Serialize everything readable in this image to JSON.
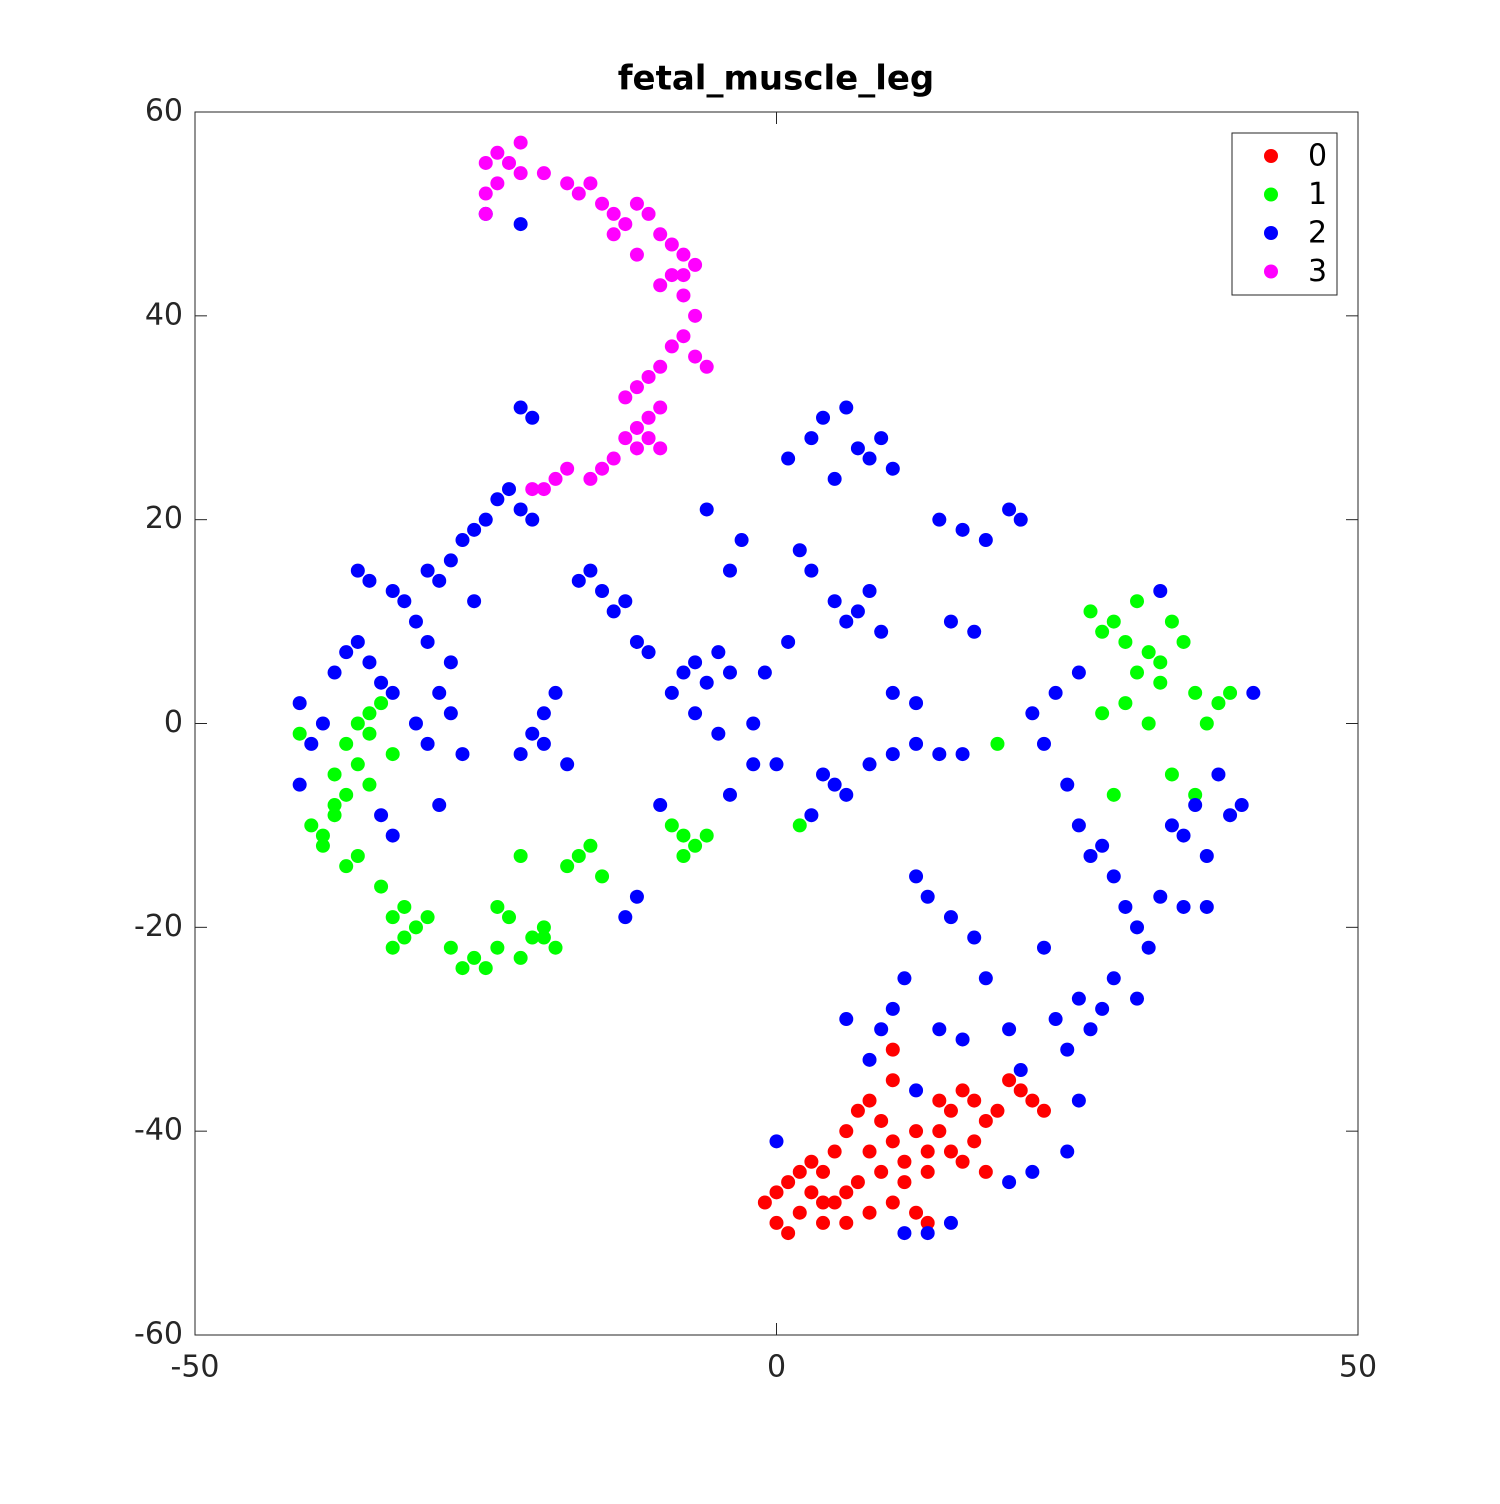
{
  "chart_data": {
    "type": "scatter",
    "title": "fetal_muscle_leg",
    "xlim": [
      -50,
      50
    ],
    "xticks": [
      -50,
      0,
      50
    ],
    "ylim": [
      -60,
      60
    ],
    "yticks": [
      -60,
      -40,
      -20,
      0,
      20,
      40,
      60
    ],
    "grid": false,
    "legend": "upper right",
    "series": [
      {
        "name": "0",
        "color": "#ff0000",
        "x": [
          -1,
          0,
          1,
          2,
          3,
          4,
          5,
          6,
          7,
          8,
          9,
          10,
          11,
          12,
          13,
          14,
          15,
          16,
          17,
          18,
          19,
          20,
          21,
          22,
          23,
          5,
          7,
          9,
          11,
          4,
          6,
          2,
          1,
          3,
          8,
          10,
          13,
          15,
          16,
          17,
          12,
          14,
          10,
          10,
          13,
          18,
          0,
          6,
          8,
          4
        ],
        "values": [
          -47,
          -49,
          -45,
          -48,
          -46,
          -44,
          -42,
          -40,
          -38,
          -37,
          -39,
          -41,
          -43,
          -48,
          -49,
          -40,
          -38,
          -36,
          -37,
          -39,
          -38,
          -35,
          -36,
          -37,
          -38,
          -47,
          -45,
          -44,
          -45,
          -49,
          -49,
          -44,
          -50,
          -43,
          -42,
          -47,
          -44,
          -42,
          -43,
          -41,
          -40,
          -37,
          -35,
          -32,
          -42,
          -44,
          -46,
          -46,
          -48,
          -47
        ]
      },
      {
        "name": "1",
        "color": "#00ff00",
        "x": [
          -41,
          -40,
          -39,
          -38,
          -37,
          -36,
          -35,
          -34,
          -33,
          -38,
          -37,
          -36,
          -35,
          -39,
          -38,
          -37,
          -36,
          -35,
          -34,
          -33,
          -32,
          -31,
          -30,
          -33,
          -32,
          -28,
          -27,
          -26,
          -25,
          -24,
          -23,
          -22,
          -21,
          -20,
          -19,
          -18,
          -17,
          -16,
          -15,
          -24,
          -22,
          -20,
          -9,
          -8,
          -7,
          -6,
          -8,
          27,
          28,
          29,
          30,
          31,
          32,
          33,
          34,
          35,
          36,
          37,
          38,
          39,
          28,
          30,
          32,
          34,
          36,
          31,
          33,
          29,
          19,
          2
        ],
        "values": [
          -1,
          -10,
          -12,
          -8,
          -2,
          0,
          1,
          2,
          -3,
          -5,
          -14,
          -13,
          -6,
          -11,
          -9,
          -7,
          -4,
          -1,
          -16,
          -19,
          -21,
          -20,
          -19,
          -22,
          -18,
          -22,
          -24,
          -23,
          -24,
          -22,
          -19,
          -23,
          -21,
          -20,
          -22,
          -14,
          -13,
          -12,
          -15,
          -18,
          -13,
          -21,
          -10,
          -11,
          -12,
          -11,
          -13,
          11,
          9,
          10,
          8,
          12,
          7,
          6,
          10,
          8,
          3,
          0,
          2,
          3,
          1,
          2,
          0,
          -5,
          -7,
          5,
          4,
          -7,
          -2,
          -10
        ]
      },
      {
        "name": "2",
        "color": "#0000ff",
        "x": [
          -41,
          -40,
          -39,
          -41,
          -38,
          -37,
          -36,
          -35,
          -34,
          -33,
          -36,
          -35,
          -33,
          -32,
          -31,
          -30,
          -29,
          -28,
          -27,
          -26,
          -25,
          -24,
          -23,
          -22,
          -21,
          -22,
          -21,
          -25,
          -22,
          -29,
          -28,
          -27,
          -29,
          -33,
          -34,
          -30,
          -31,
          -28,
          -30,
          -26,
          -22,
          -21,
          -20,
          -19,
          -18,
          -20,
          -17,
          -16,
          -15,
          -14,
          -13,
          -12,
          -11,
          -9,
          -8,
          -7,
          -6,
          -5,
          -4,
          -7,
          -5,
          -2,
          -1,
          1,
          -3,
          -6,
          -4,
          -13,
          -12,
          -10,
          1,
          3,
          4,
          6,
          7,
          8,
          9,
          10,
          5,
          2,
          3,
          5,
          6,
          7,
          8,
          9,
          10,
          12,
          4,
          5,
          6,
          3,
          8,
          10,
          12,
          14,
          16,
          -2,
          -4,
          0,
          14,
          16,
          18,
          20,
          21,
          17,
          15,
          22,
          24,
          26,
          23,
          25,
          26,
          27,
          28,
          29,
          30,
          31,
          32,
          33,
          34,
          35,
          36,
          37,
          38,
          39,
          40,
          41,
          33,
          29,
          28,
          27,
          26,
          25,
          24,
          23,
          31,
          12,
          13,
          15,
          17,
          18,
          11,
          10,
          9,
          8,
          14,
          16,
          6,
          12,
          15,
          13,
          11,
          20,
          22,
          25,
          26,
          0,
          35,
          37,
          20,
          21
        ],
        "values": [
          -6,
          -2,
          0,
          2,
          5,
          7,
          8,
          6,
          4,
          3,
          15,
          14,
          13,
          12,
          10,
          15,
          14,
          16,
          18,
          19,
          20,
          22,
          23,
          21,
          20,
          31,
          30,
          50,
          49,
          3,
          1,
          -3,
          -8,
          -11,
          -9,
          -2,
          0,
          6,
          8,
          12,
          -3,
          -1,
          1,
          3,
          -4,
          -2,
          14,
          15,
          13,
          11,
          12,
          8,
          7,
          3,
          5,
          6,
          4,
          7,
          5,
          1,
          -1,
          0,
          5,
          8,
          18,
          21,
          15,
          -19,
          -17,
          -8,
          26,
          28,
          30,
          31,
          27,
          26,
          28,
          25,
          24,
          17,
          15,
          12,
          10,
          11,
          13,
          9,
          3,
          2,
          -5,
          -6,
          -7,
          -9,
          -4,
          -3,
          -2,
          -3,
          -3,
          -4,
          -7,
          -4,
          20,
          19,
          18,
          21,
          20,
          9,
          10,
          1,
          3,
          5,
          -2,
          -6,
          -10,
          -13,
          -12,
          -15,
          -18,
          -20,
          -22,
          -17,
          -10,
          -11,
          -8,
          -13,
          -5,
          -9,
          -8,
          3,
          13,
          -25,
          -28,
          -30,
          -27,
          -32,
          -29,
          -22,
          -27,
          -15,
          -17,
          -19,
          -21,
          -25,
          -25,
          -28,
          -30,
          -33,
          -30,
          -31,
          -29,
          -36,
          -49,
          -50,
          -50,
          -45,
          -44,
          -42,
          -37,
          -41,
          -18,
          -18,
          -30,
          -34
        ]
      },
      {
        "name": "3",
        "color": "#ff00ff",
        "x": [
          -25,
          -24,
          -23,
          -22,
          -25,
          -24,
          -25,
          -22,
          -20,
          -18,
          -17,
          -16,
          -15,
          -14,
          -13,
          -12,
          -11,
          -10,
          -9,
          -8,
          -7,
          -9,
          -10,
          -8,
          -7,
          -8,
          -9,
          -7,
          -6,
          -10,
          -11,
          -12,
          -10,
          -11,
          -12,
          -11,
          -10,
          -12,
          -13,
          -14,
          -15,
          -16,
          -18,
          -19,
          -20,
          -21,
          -14,
          -12,
          -8,
          -13
        ],
        "values": [
          55,
          56,
          55,
          57,
          52,
          53,
          50,
          54,
          54,
          53,
          52,
          53,
          51,
          50,
          49,
          51,
          50,
          48,
          47,
          46,
          45,
          44,
          43,
          42,
          40,
          38,
          37,
          36,
          35,
          35,
          34,
          33,
          31,
          30,
          29,
          28,
          27,
          27,
          28,
          26,
          25,
          24,
          25,
          24,
          23,
          23,
          48,
          46,
          44,
          32
        ]
      }
    ]
  }
}
